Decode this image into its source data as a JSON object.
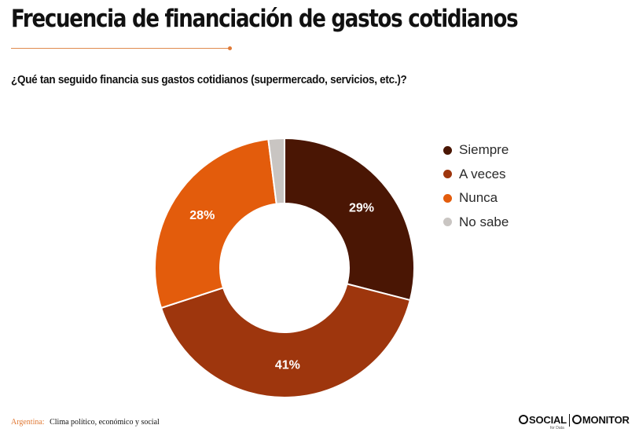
{
  "header": {
    "title": "Frecuencia de financiación de gastos cotidianos",
    "question": "¿Qué tan seguido financia sus gastos cotidianos (supermercado, servicios, etc.)?"
  },
  "chart_data": {
    "type": "pie",
    "donut": true,
    "title": "",
    "categories": [
      "Siempre",
      "A veces",
      "Nunca",
      "No sabe"
    ],
    "values": [
      29,
      41,
      28,
      2
    ],
    "data_labels": [
      "29%",
      "41%",
      "28%",
      ""
    ],
    "colors": [
      "#4a1604",
      "#9e360d",
      "#e35c0c",
      "#c9c5c2"
    ],
    "legend_position": "right"
  },
  "footer": {
    "country": "Argentina:",
    "subtitle": "Clima político, económico y social"
  },
  "logos": {
    "social": "SOCIAL",
    "social_sub": "for Data",
    "monitor": "MONITOR"
  }
}
